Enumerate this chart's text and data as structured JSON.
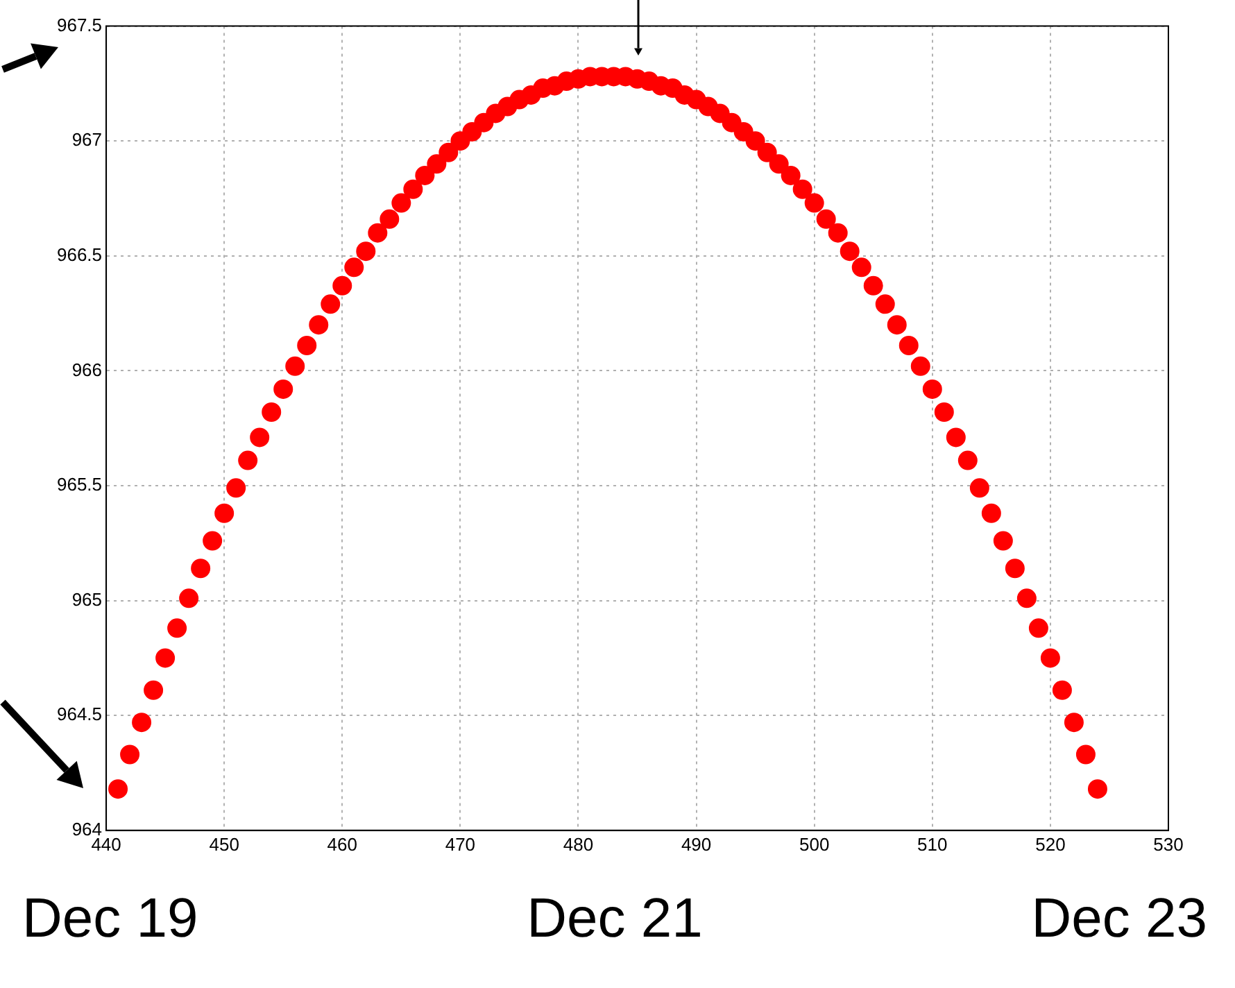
{
  "chart_data": {
    "type": "scatter",
    "marker": "circle",
    "grid": true,
    "legend": false,
    "xlim": [
      440,
      530
    ],
    "xticks": [
      440,
      450,
      460,
      470,
      480,
      490,
      500,
      510,
      520,
      530
    ],
    "ylim": [
      964,
      967.5
    ],
    "yticks": [
      964,
      964.5,
      965,
      965.5,
      966,
      966.5,
      967,
      967.5
    ],
    "x": [
      441,
      442,
      443,
      444,
      445,
      446,
      447,
      448,
      449,
      450,
      451,
      452,
      453,
      454,
      455,
      456,
      457,
      458,
      459,
      460,
      461,
      462,
      463,
      464,
      465,
      466,
      467,
      468,
      469,
      470,
      471,
      472,
      473,
      474,
      475,
      476,
      477,
      478,
      479,
      480,
      481,
      482,
      483,
      484,
      485,
      486,
      487,
      488,
      489,
      490,
      491,
      492,
      493,
      494,
      495,
      496,
      497,
      498,
      499,
      500,
      501,
      502,
      503,
      504,
      505,
      506,
      507,
      508,
      509,
      510,
      511,
      512,
      513,
      514,
      515,
      516,
      517,
      518,
      519,
      520,
      521,
      522,
      523,
      524
    ],
    "series": [
      {
        "color": "#ff0000",
        "values": [
          964.18,
          964.33,
          964.47,
          964.61,
          964.75,
          964.88,
          965.01,
          965.14,
          965.26,
          965.38,
          965.49,
          965.61,
          965.71,
          965.82,
          965.92,
          966.02,
          966.11,
          966.2,
          966.29,
          966.37,
          966.45,
          966.52,
          966.6,
          966.66,
          966.73,
          966.79,
          966.85,
          966.9,
          966.95,
          967.0,
          967.04,
          967.08,
          967.12,
          967.15,
          967.18,
          967.2,
          967.23,
          967.24,
          967.26,
          967.27,
          967.28,
          967.28,
          967.28,
          967.28,
          967.27,
          967.26,
          967.24,
          967.23,
          967.2,
          967.18,
          967.15,
          967.12,
          967.08,
          967.04,
          967.0,
          966.95,
          966.9,
          966.85,
          966.79,
          966.73,
          966.66,
          966.6,
          966.52,
          966.45,
          966.37,
          966.29,
          966.2,
          966.11,
          966.02,
          965.92,
          965.82,
          965.71,
          965.61,
          965.49,
          965.38,
          965.26,
          965.14,
          965.01,
          964.88,
          964.75,
          964.61,
          964.47,
          964.33,
          964.18
        ]
      }
    ],
    "annotations": [
      "Dec 19",
      "Dec 21",
      "Dec 23"
    ]
  }
}
